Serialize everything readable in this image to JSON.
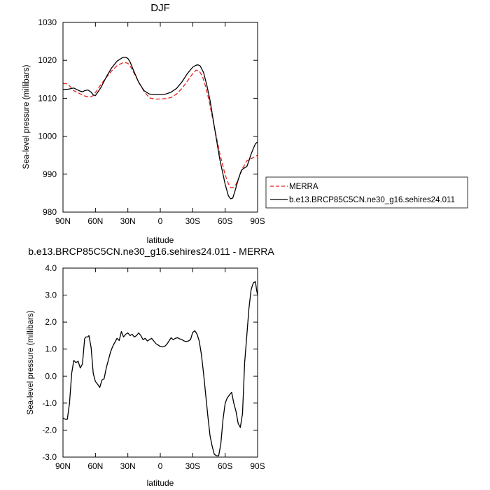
{
  "chart_data": [
    {
      "type": "line",
      "title": "DJF",
      "xlabel": "latitude",
      "ylabel": "Sea-level pressure (millibars)",
      "xlim": [
        90,
        -90
      ],
      "ylim": [
        980,
        1030
      ],
      "xticks": [
        90,
        60,
        30,
        0,
        -30,
        -60,
        -90
      ],
      "xtick_labels": [
        "90N",
        "60N",
        "30N",
        "0",
        "30S",
        "60S",
        "90S"
      ],
      "yticks": [
        980,
        990,
        1000,
        1010,
        1020,
        1030
      ],
      "ytick_labels": [
        "980",
        "990",
        "1000",
        "1010",
        "1020",
        "1030"
      ],
      "grid": false,
      "legend_position": "right",
      "series": [
        {
          "name": "MERRA",
          "color": "#e8211d",
          "dash": "dashed",
          "x": [
            90,
            86,
            84,
            80,
            75,
            70,
            65,
            62,
            60,
            55,
            50,
            45,
            40,
            35,
            32,
            30,
            28,
            25,
            20,
            15,
            10,
            5,
            0,
            -5,
            -10,
            -15,
            -20,
            -25,
            -30,
            -33,
            -36,
            -39,
            -42,
            -45,
            -50,
            -55,
            -60,
            -63,
            -65,
            -67,
            -70,
            -73,
            -76,
            -80,
            -85,
            -90
          ],
          "y": [
            1013.9,
            1013.8,
            1013.3,
            1012.0,
            1011.3,
            1010.6,
            1010.3,
            1010.7,
            1011.5,
            1013.6,
            1015.5,
            1017.2,
            1018.6,
            1019.3,
            1019.4,
            1019.2,
            1018.6,
            1017.0,
            1014.3,
            1011.8,
            1010.1,
            1009.8,
            1009.8,
            1009.9,
            1010.2,
            1011.1,
            1012.6,
            1014.5,
            1016.5,
            1017.4,
            1017.2,
            1015.8,
            1013.0,
            1009.5,
            1002.5,
            995.5,
            989.8,
            987.5,
            986.5,
            986.4,
            987.3,
            989.2,
            991.5,
            993.5,
            994.2,
            995.0
          ]
        },
        {
          "name": "b.e13.BRCP85C5CN.ne30_g16.sehires24.011",
          "color": "#000000",
          "dash": "solid",
          "x": [
            90,
            85,
            80,
            75,
            72,
            70,
            67,
            64,
            62,
            60,
            55,
            50,
            45,
            40,
            35,
            32,
            30,
            28,
            25,
            20,
            15,
            10,
            5,
            0,
            -5,
            -10,
            -15,
            -20,
            -25,
            -30,
            -33,
            -35,
            -37,
            -40,
            -43,
            -46,
            -50,
            -55,
            -60,
            -63,
            -65,
            -67,
            -69,
            -72,
            -75,
            -78,
            -80,
            -82,
            -84,
            -86,
            -88,
            -90
          ],
          "y": [
            1012.3,
            1012.4,
            1012.7,
            1012.0,
            1011.7,
            1012.0,
            1012.2,
            1011.6,
            1010.9,
            1010.7,
            1012.8,
            1015.6,
            1018.0,
            1019.8,
            1020.7,
            1020.8,
            1020.5,
            1019.6,
            1017.5,
            1014.2,
            1012.0,
            1011.1,
            1011.0,
            1011.0,
            1011.1,
            1011.6,
            1012.6,
            1014.3,
            1016.5,
            1018.2,
            1018.7,
            1018.8,
            1018.5,
            1016.8,
            1013.5,
            1009.5,
            1002.5,
            994.0,
            987.3,
            984.3,
            983.5,
            983.7,
            985.5,
            988.5,
            991.0,
            991.7,
            992.0,
            993.5,
            995.3,
            996.7,
            998.0,
            998.5
          ]
        }
      ]
    },
    {
      "type": "line",
      "title": "b.e13.BRCP85C5CN.ne30_g16.sehires24.011 - MERRA",
      "xlabel": "latitude",
      "ylabel": "Sea-level pressure (millibars)",
      "xlim": [
        90,
        -90
      ],
      "ylim": [
        -3.0,
        4.0
      ],
      "xticks": [
        90,
        60,
        30,
        0,
        -30,
        -60,
        -90
      ],
      "xtick_labels": [
        "90N",
        "60N",
        "30N",
        "0",
        "30S",
        "60S",
        "90S"
      ],
      "yticks": [
        -3,
        -2,
        -1,
        0,
        1,
        2,
        3,
        4
      ],
      "ytick_labels": [
        "-3.0",
        "-2.0",
        "-1.0",
        "0.0",
        "1.0",
        "2.0",
        "3.0",
        "4.0"
      ],
      "grid": false,
      "series": [
        {
          "color": "#000000",
          "dash": "solid",
          "x": [
            90,
            88,
            86,
            84,
            82,
            80,
            78,
            76,
            74,
            72,
            70,
            69,
            67,
            66,
            64,
            62,
            60,
            58,
            56,
            54,
            52,
            50,
            48,
            46,
            44,
            42,
            40,
            38,
            36,
            34,
            32,
            30,
            28,
            26,
            24,
            22,
            20,
            18,
            16,
            14,
            12,
            10,
            8,
            6,
            4,
            2,
            0,
            -2,
            -4,
            -6,
            -8,
            -10,
            -12,
            -14,
            -16,
            -18,
            -20,
            -22,
            -24,
            -26,
            -28,
            -30,
            -32,
            -34,
            -36,
            -38,
            -40,
            -42,
            -44,
            -46,
            -48,
            -50,
            -52,
            -54,
            -56,
            -58,
            -60,
            -62,
            -64,
            -66,
            -68,
            -70,
            -72,
            -74,
            -76,
            -77,
            -78,
            -80,
            -82,
            -84,
            -86,
            -88,
            -89,
            -90
          ],
          "y": [
            -1.55,
            -1.6,
            -1.6,
            -1.0,
            0.1,
            0.58,
            0.5,
            0.55,
            0.3,
            0.45,
            1.38,
            1.45,
            1.45,
            1.5,
            1.05,
            0.1,
            -0.2,
            -0.3,
            -0.42,
            -0.15,
            -0.1,
            0.3,
            0.6,
            0.9,
            1.1,
            1.25,
            1.4,
            1.32,
            1.65,
            1.45,
            1.55,
            1.6,
            1.5,
            1.55,
            1.45,
            1.5,
            1.6,
            1.5,
            1.35,
            1.4,
            1.3,
            1.35,
            1.4,
            1.3,
            1.2,
            1.15,
            1.1,
            1.08,
            1.1,
            1.18,
            1.3,
            1.42,
            1.35,
            1.4,
            1.42,
            1.38,
            1.35,
            1.3,
            1.28,
            1.3,
            1.35,
            1.62,
            1.68,
            1.55,
            1.3,
            0.8,
            0.1,
            -0.7,
            -1.5,
            -2.2,
            -2.6,
            -2.9,
            -2.95,
            -2.95,
            -2.5,
            -1.6,
            -1.0,
            -0.8,
            -0.7,
            -0.6,
            -1.0,
            -1.3,
            -1.75,
            -1.9,
            -1.4,
            -0.5,
            0.5,
            1.5,
            2.5,
            3.2,
            3.45,
            3.5,
            3.2,
            3.0
          ]
        }
      ]
    }
  ]
}
